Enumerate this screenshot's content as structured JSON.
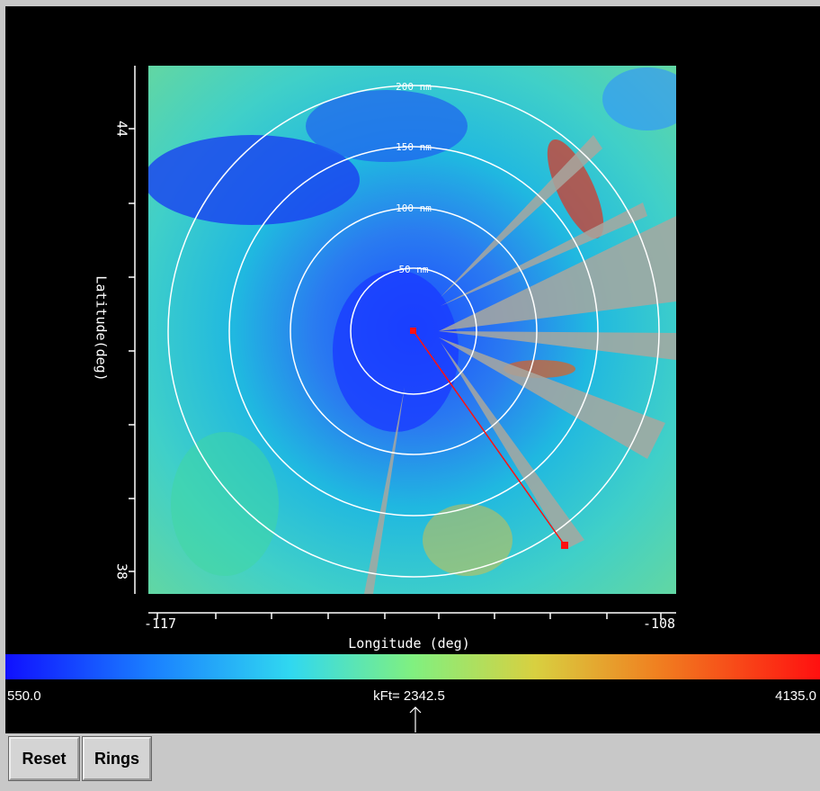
{
  "plot": {
    "x_axis_label": "Longitude (deg)",
    "y_axis_label": "Latitude(deg)",
    "x_tick_labels": [
      "-117",
      "-108"
    ],
    "y_tick_labels": [
      "44",
      "38"
    ],
    "ring_labels": [
      "50 nm",
      "100 nm",
      "150 nm",
      "200 nm"
    ]
  },
  "colorbar": {
    "min_label": "550.0",
    "max_label": "4135.0",
    "readout": "kFt= 2342.5"
  },
  "buttons": [
    "Reset",
    "Rings"
  ]
}
